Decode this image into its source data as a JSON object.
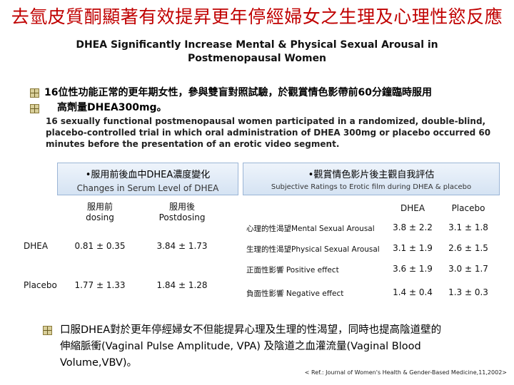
{
  "title": {
    "zh": "去氫皮質酮顯著有效提昇更年停經婦女之生理及心理性慾反應",
    "en_line1": "DHEA Significantly Increase Mental & Physical Sexual Arousal in",
    "en_line2": "Postmenopausal Women"
  },
  "intro": {
    "zh_line1": "16位性功能正常的更年期女性，參與雙盲對照試驗，於觀賞情色影帶前60分鐘臨時服用",
    "zh_line2": "高劑量DHEA300mg。",
    "en_line1": "16 sexually functional postmenopausal women participated in a randomized, double-blind,",
    "en_line2": "placebo-controlled trial in which oral administration of DHEA 300mg or placebo occurred 60",
    "en_line3": "minutes before the presentation of an erotic video segment."
  },
  "left_table": {
    "header_zh": "•服用前後血中DHEA濃度變化",
    "header_en": "Changes in Serum Level of DHEA",
    "col1_zh": "服用前",
    "col1_en": "dosing",
    "col2_zh": "服用後",
    "col2_en": "Postdosing",
    "rows": [
      {
        "label": "DHEA",
        "pre": "0.81 ± 0.35",
        "post": "3.84 ± 1.73"
      },
      {
        "label": "Placebo",
        "pre": "1.77 ± 1.33",
        "post": "1.84 ± 1.28"
      }
    ]
  },
  "right_table": {
    "header_zh": "•觀賞情色影片後主觀自我評估",
    "header_en": "Subjective Ratings to Erotic film during DHEA & placebo",
    "col1": "DHEA",
    "col2": "Placebo",
    "rows": [
      {
        "label": "心理的性渴望Mental Sexual Arousal",
        "dhea": "3.8 ± 2.2",
        "placebo": "3.1 ± 1.8"
      },
      {
        "label": "生理的性渴望Physical Sexual Arousal",
        "dhea": "3.1 ± 1.9",
        "placebo": "2.6 ± 1.5"
      },
      {
        "label": "正面性影響 Positive effect",
        "dhea": "3.6 ± 1.9",
        "placebo": "3.0 ± 1.7"
      },
      {
        "label": "負面性影響 Negative effect",
        "dhea": "1.4 ± 0.4",
        "placebo": "1.3 ± 0.3"
      }
    ]
  },
  "conclusion": {
    "line1": "口服DHEA對於更年停經婦女不但能提昇心理及生理的性渴望，同時也提高陰道壁的",
    "line2": "伸縮脈衝(Vaginal Pulse Amplitude, VPA) 及陰道之血灌流量(Vaginal Blood",
    "line3": "Volume,VBV)。"
  },
  "reference": "< Ref.: Journal of Women's Health & Gender-Based Medicine,11,2002>"
}
